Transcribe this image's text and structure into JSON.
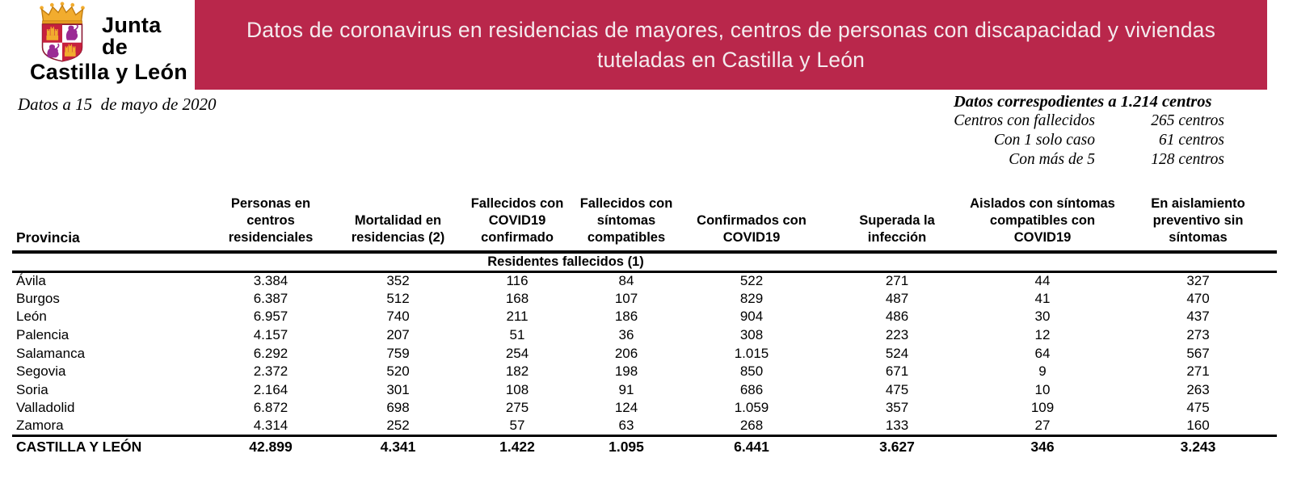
{
  "logo": {
    "line1": "Junta de",
    "line2": "Castilla y León"
  },
  "banner": {
    "title": "Datos de coronavirus en residencias de mayores, centros de personas con discapacidad y viviendas\ntuteladas en Castilla y León",
    "background_color": "#b9274b",
    "text_color": "#f4ebee"
  },
  "meta": {
    "date_note": "Datos a 15  de mayo de 2020"
  },
  "centers_summary": {
    "title": "Datos correspodientes a 1.214 centros",
    "rows": [
      {
        "label": "Centros con fallecidos",
        "value": "265 centros"
      },
      {
        "label": "Con 1 solo caso",
        "value": "61 centros"
      },
      {
        "label": "Con más de 5",
        "value": "128 centros"
      }
    ]
  },
  "table": {
    "province_header": "Provincia",
    "columns": [
      "Personas en\ncentros\nresidenciales",
      "Mortalidad en\nresidencias (2)",
      "Fallecidos con\nCOVID19\nconfirmado",
      "Fallecidos con\nsíntomas\ncompatibles",
      "Confirmados con\nCOVID19",
      "Superada la\ninfección",
      "Aislados con síntomas\ncompatibles con\nCOVID19",
      "En aislamiento\npreventivo sin\nsíntomas"
    ],
    "subheader": "Residentes fallecidos (1)",
    "rows": [
      {
        "province": "Ávila",
        "values": [
          "3.384",
          "352",
          "116",
          "84",
          "522",
          "271",
          "44",
          "327"
        ]
      },
      {
        "province": "Burgos",
        "values": [
          "6.387",
          "512",
          "168",
          "107",
          "829",
          "487",
          "41",
          "470"
        ]
      },
      {
        "province": "León",
        "values": [
          "6.957",
          "740",
          "211",
          "186",
          "904",
          "486",
          "30",
          "437"
        ]
      },
      {
        "province": "Palencia",
        "values": [
          "4.157",
          "207",
          "51",
          "36",
          "308",
          "223",
          "12",
          "273"
        ]
      },
      {
        "province": "Salamanca",
        "values": [
          "6.292",
          "759",
          "254",
          "206",
          "1.015",
          "524",
          "64",
          "567"
        ]
      },
      {
        "province": "Segovia",
        "values": [
          "2.372",
          "520",
          "182",
          "198",
          "850",
          "671",
          "9",
          "271"
        ]
      },
      {
        "province": "Soria",
        "values": [
          "2.164",
          "301",
          "108",
          "91",
          "686",
          "475",
          "10",
          "263"
        ]
      },
      {
        "province": "Valladolid",
        "values": [
          "6.872",
          "698",
          "275",
          "124",
          "1.059",
          "357",
          "109",
          "475"
        ]
      },
      {
        "province": "Zamora",
        "values": [
          "4.314",
          "252",
          "57",
          "63",
          "268",
          "133",
          "27",
          "160"
        ]
      }
    ],
    "total_row": {
      "province": "CASTILLA Y LEÓN",
      "values": [
        "42.899",
        "4.341",
        "1.422",
        "1.095",
        "6.441",
        "3.627",
        "346",
        "3.243"
      ]
    }
  }
}
